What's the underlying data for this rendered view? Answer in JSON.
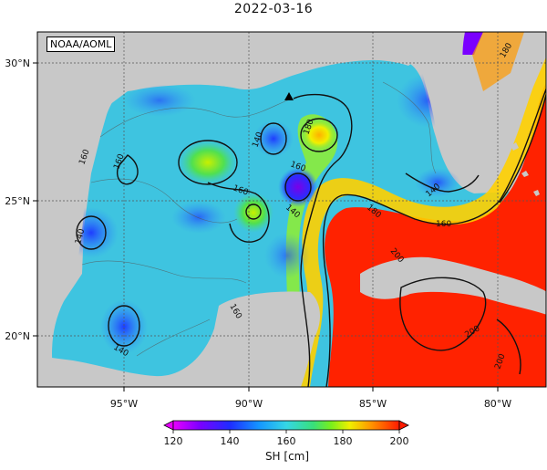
{
  "title": "2022-03-16",
  "credit": "NOAA/AOML",
  "axes": {
    "lon_ticks": [
      "95°W",
      "90°W",
      "85°W",
      "80°W"
    ],
    "lat_ticks": [
      "30°N",
      "25°N",
      "20°N"
    ]
  },
  "contour_labels": [
    "180",
    "160",
    "140",
    "160",
    "160",
    "140",
    "140",
    "140",
    "160",
    "180",
    "160",
    "180",
    "200",
    "200",
    "200",
    "160",
    "140",
    "140"
  ],
  "colorbar": {
    "ticks": [
      "120",
      "140",
      "160",
      "180",
      "200"
    ],
    "label": "SH [cm]"
  },
  "colors": {
    "land": "#c8c8c8",
    "ocean_low": "#6a00d9",
    "ocean_mid": "#38c8e8",
    "ocean_high": "#ff1a00"
  }
}
